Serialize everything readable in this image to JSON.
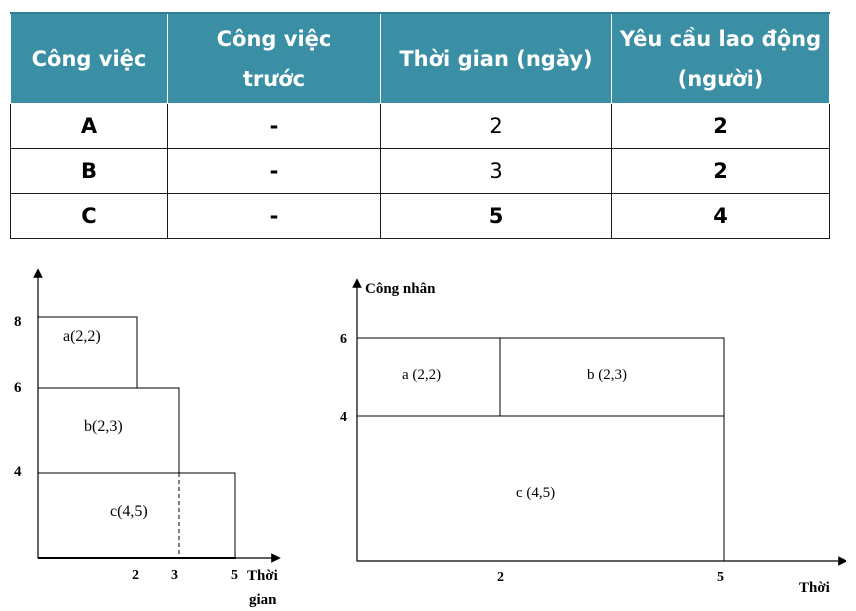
{
  "table": {
    "headers": [
      "Công việc",
      "Công việc\ntrước",
      "Thời gian (ngày)",
      "Yêu cầu lao động\n(người)"
    ],
    "rows": [
      {
        "task": "A",
        "prev": "-",
        "time": "2",
        "labor": "2"
      },
      {
        "task": "B",
        "prev": "-",
        "time": "3",
        "labor": "2"
      },
      {
        "task": "C",
        "prev": "-",
        "time": "5",
        "labor": "4"
      }
    ]
  },
  "left_diagram": {
    "y_ticks": [
      "8",
      "6",
      "4"
    ],
    "x_ticks": [
      "2",
      "3",
      "5"
    ],
    "x_label_line1": "Thời",
    "x_label_line2": "gian",
    "blocks": [
      "a(2,2)",
      "b(2,3)",
      "c(4,5)"
    ]
  },
  "right_diagram": {
    "y_label": "Công nhân",
    "y_ticks": [
      "6",
      "4"
    ],
    "x_ticks": [
      "2",
      "5"
    ],
    "x_label_partial": "Thời",
    "blocks": [
      "a (2,2)",
      "b (2,3)",
      "c (4,5)"
    ]
  }
}
